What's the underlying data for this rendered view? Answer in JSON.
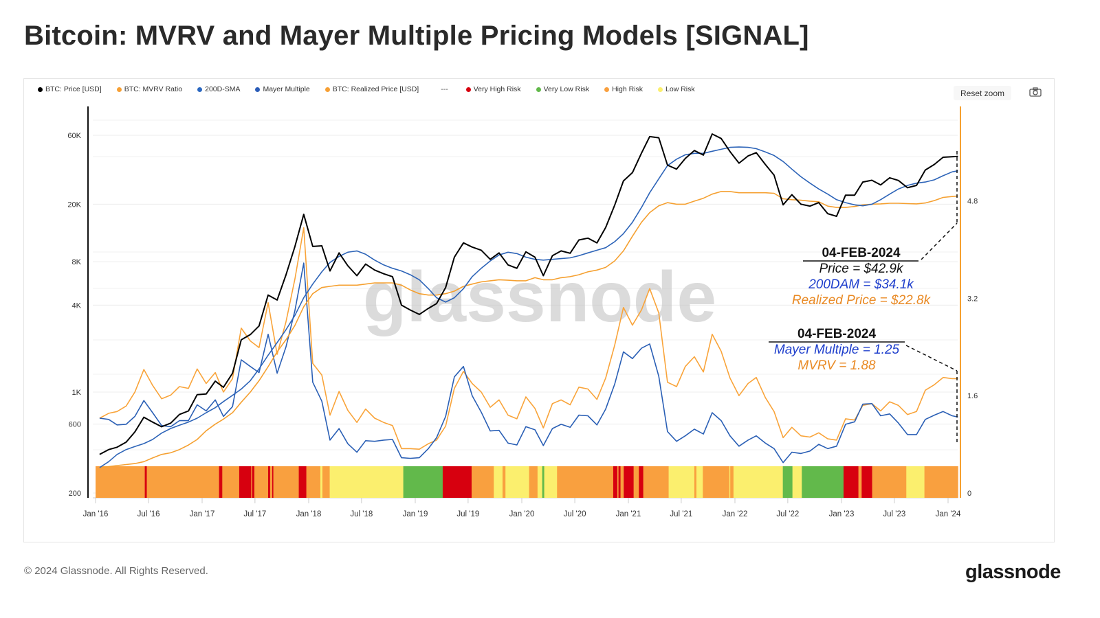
{
  "title": "Bitcoin: MVRV and Mayer Multiple Pricing Models [SIGNAL]",
  "toolbar": {
    "reset_zoom": "Reset zoom",
    "camera_icon": "camera-icon"
  },
  "legend": [
    {
      "label": "BTC: Price [USD]",
      "color": "#000000"
    },
    {
      "label": "BTC: MVRV Ratio",
      "color": "#f7a035"
    },
    {
      "label": "200D-SMA",
      "color": "#2b68c1"
    },
    {
      "label": "Mayer Multiple",
      "color": "#2b5db8"
    },
    {
      "label": "BTC: Realized Price [USD]",
      "color": "#f7a035"
    },
    {
      "label": "---",
      "color": ""
    },
    {
      "label": "Very High Risk",
      "color": "#d7000f"
    },
    {
      "label": "Very Low Risk",
      "color": "#62b94b"
    },
    {
      "label": "High Risk",
      "color": "#f9a03f"
    },
    {
      "label": "Low Risk",
      "color": "#fbef6e"
    }
  ],
  "watermark": "glassnode",
  "annotations": {
    "top": {
      "date": "04-FEB-2024",
      "price": "Price = $42.9k",
      "sma": "200DAM = $34.1k",
      "realized": "Realized Price = $22.8k"
    },
    "bottom": {
      "date": "04-FEB-2024",
      "mayer": "Mayer Multiple = 1.25",
      "mvrv": "MVRV = 1.88"
    }
  },
  "footer": {
    "copyright": "© 2024 Glassnode. All Rights Reserved.",
    "logo": "glassnode"
  },
  "chart_data": {
    "type": "line",
    "title": "Bitcoin: MVRV and Mayer Multiple Pricing Models [SIGNAL]",
    "grid": true,
    "legend_position": "top",
    "left_axis": {
      "scale": "log",
      "range": [
        200,
        80000
      ],
      "ticks": [
        200,
        600,
        1000,
        4000,
        8000,
        20000,
        60000
      ],
      "tick_labels": [
        "200",
        "600",
        "1K",
        "4K",
        "8K",
        "20K",
        "60K"
      ]
    },
    "right_axis": {
      "scale": "linear",
      "range": [
        0,
        6.5
      ],
      "ticks": [
        0,
        1.6,
        3.2,
        4.8
      ],
      "tick_labels": [
        "0",
        "1.6",
        "3.2",
        "4.8"
      ]
    },
    "x_axis": {
      "range": [
        "2016-01-01",
        "2024-02-04"
      ],
      "ticks": [
        "2016-01-01",
        "2016-07-01",
        "2017-01-01",
        "2017-07-01",
        "2018-01-01",
        "2018-07-01",
        "2019-01-01",
        "2019-07-01",
        "2020-01-01",
        "2020-07-01",
        "2021-01-01",
        "2021-07-01",
        "2022-01-01",
        "2022-07-01",
        "2023-01-01",
        "2023-07-01",
        "2024-01-01"
      ],
      "tick_labels": [
        "Jan '16",
        "Jul '16",
        "Jan '17",
        "Jul '17",
        "Jan '18",
        "Jul '18",
        "Jan '19",
        "Jul '19",
        "Jan '20",
        "Jul '20",
        "Jan '21",
        "Jul '21",
        "Jan '22",
        "Jul '22",
        "Jan '23",
        "Jul '23",
        "Jan '24"
      ]
    },
    "x": [
      "2016-01",
      "2016-02",
      "2016-03",
      "2016-04",
      "2016-05",
      "2016-06",
      "2016-07",
      "2016-08",
      "2016-09",
      "2016-10",
      "2016-11",
      "2016-12",
      "2017-01",
      "2017-02",
      "2017-03",
      "2017-04",
      "2017-05",
      "2017-06",
      "2017-07",
      "2017-08",
      "2017-09",
      "2017-10",
      "2017-11",
      "2017-12",
      "2018-01",
      "2018-02",
      "2018-03",
      "2018-04",
      "2018-05",
      "2018-06",
      "2018-07",
      "2018-08",
      "2018-09",
      "2018-10",
      "2018-11",
      "2018-12",
      "2019-01",
      "2019-02",
      "2019-03",
      "2019-04",
      "2019-05",
      "2019-06",
      "2019-07",
      "2019-08",
      "2019-09",
      "2019-10",
      "2019-11",
      "2019-12",
      "2020-01",
      "2020-02",
      "2020-03",
      "2020-04",
      "2020-05",
      "2020-06",
      "2020-07",
      "2020-08",
      "2020-09",
      "2020-10",
      "2020-11",
      "2020-12",
      "2021-01",
      "2021-02",
      "2021-03",
      "2021-04",
      "2021-05",
      "2021-06",
      "2021-07",
      "2021-08",
      "2021-09",
      "2021-10",
      "2021-11",
      "2021-12",
      "2022-01",
      "2022-02",
      "2022-03",
      "2022-04",
      "2022-05",
      "2022-06",
      "2022-07",
      "2022-08",
      "2022-09",
      "2022-10",
      "2022-11",
      "2022-12",
      "2023-01",
      "2023-02",
      "2023-03",
      "2023-04",
      "2023-05",
      "2023-06",
      "2023-07",
      "2023-08",
      "2023-09",
      "2023-10",
      "2023-11",
      "2023-12",
      "2024-01",
      "2024-02-04"
    ],
    "series": [
      {
        "name": "BTC: Price [USD]",
        "axis": "left",
        "color": "#000000",
        "values": [
          370,
          400,
          415,
          450,
          530,
          670,
          620,
          575,
          610,
          700,
          740,
          960,
          970,
          1190,
          1080,
          1350,
          2300,
          2500,
          2870,
          4700,
          4340,
          6470,
          10200,
          17000,
          10200,
          10300,
          6900,
          9200,
          7500,
          6400,
          7700,
          7000,
          6600,
          6300,
          4000,
          3700,
          3450,
          3800,
          4100,
          5300,
          8600,
          10800,
          10100,
          9600,
          8300,
          9200,
          7600,
          7200,
          9350,
          8600,
          6400,
          8800,
          9500,
          9150,
          11300,
          11650,
          10780,
          13800,
          19700,
          29000,
          33100,
          45200,
          58800,
          57700,
          37300,
          35000,
          41500,
          47100,
          43800,
          61300,
          57000,
          46300,
          38500,
          43200,
          45500,
          37700,
          31800,
          19800,
          23300,
          20000,
          19400,
          20500,
          17200,
          16500,
          23100,
          23100,
          28500,
          29300,
          27200,
          30500,
          29200,
          26000,
          27000,
          34500,
          37700,
          42300,
          42600,
          42900
        ]
      },
      {
        "name": "200D-SMA",
        "axis": "left",
        "color": "#2d64b8",
        "values": [
          300,
          330,
          370,
          400,
          420,
          440,
          470,
          520,
          560,
          590,
          620,
          660,
          720,
          780,
          860,
          950,
          1050,
          1200,
          1450,
          1800,
          2200,
          2700,
          3400,
          4500,
          5600,
          6800,
          7900,
          8700,
          9300,
          9500,
          9000,
          8200,
          7600,
          7200,
          6900,
          6500,
          6000,
          5200,
          4500,
          4200,
          4500,
          5200,
          6300,
          7200,
          8100,
          8900,
          9300,
          9100,
          8600,
          8300,
          8200,
          8300,
          8400,
          8500,
          8800,
          9200,
          9600,
          10000,
          11000,
          12500,
          15000,
          19000,
          24000,
          30000,
          37000,
          41000,
          44000,
          45000,
          45000,
          46500,
          48000,
          49500,
          49800,
          49500,
          48500,
          46000,
          43500,
          39500,
          35000,
          31000,
          28000,
          25500,
          23500,
          21500,
          20500,
          19800,
          19500,
          20000,
          21500,
          23500,
          25500,
          27000,
          28000,
          28500,
          29500,
          31500,
          33500,
          34100
        ]
      },
      {
        "name": "BTC: Realized Price [USD]",
        "axis": "left",
        "color": "#f5a030",
        "values": [
          300,
          305,
          310,
          315,
          320,
          330,
          350,
          370,
          380,
          400,
          430,
          470,
          540,
          600,
          650,
          720,
          850,
          1000,
          1200,
          1500,
          1900,
          2300,
          2900,
          3900,
          4800,
          5300,
          5400,
          5500,
          5500,
          5500,
          5600,
          5700,
          5700,
          5700,
          5500,
          5100,
          4800,
          4700,
          4700,
          4800,
          5000,
          5400,
          5600,
          5800,
          5900,
          6000,
          5950,
          5900,
          5900,
          6200,
          6000,
          6000,
          6200,
          6300,
          6500,
          6800,
          7000,
          7300,
          8100,
          9500,
          12000,
          15000,
          17500,
          19500,
          20500,
          20000,
          20000,
          21000,
          22000,
          23500,
          24500,
          24500,
          24000,
          24000,
          24000,
          24000,
          23800,
          21800,
          21500,
          21300,
          21000,
          20800,
          19400,
          19000,
          19000,
          19300,
          19800,
          20000,
          20100,
          20300,
          20300,
          20200,
          20100,
          20400,
          21200,
          22300,
          22600,
          22800
        ]
      },
      {
        "name": "Mayer Multiple",
        "axis": "right",
        "color": "#2a5fb5",
        "values": [
          1.23,
          1.21,
          1.12,
          1.13,
          1.26,
          1.52,
          1.32,
          1.11,
          1.09,
          1.19,
          1.19,
          1.45,
          1.35,
          1.53,
          1.26,
          1.42,
          2.19,
          2.08,
          1.98,
          2.61,
          1.97,
          2.4,
          3.0,
          3.78,
          1.82,
          1.51,
          0.87,
          1.06,
          0.81,
          0.67,
          0.86,
          0.85,
          0.87,
          0.88,
          0.58,
          0.57,
          0.58,
          0.73,
          0.91,
          1.26,
          1.91,
          2.08,
          1.6,
          1.33,
          1.02,
          1.03,
          0.82,
          0.79,
          1.09,
          1.04,
          0.78,
          1.06,
          1.13,
          1.08,
          1.28,
          1.27,
          1.12,
          1.38,
          1.79,
          2.32,
          2.21,
          2.38,
          2.45,
          1.92,
          1.01,
          0.85,
          0.94,
          1.05,
          0.97,
          1.32,
          1.19,
          0.94,
          0.77,
          0.87,
          0.94,
          0.82,
          0.73,
          0.5,
          0.67,
          0.65,
          0.69,
          0.8,
          0.73,
          0.77,
          1.13,
          1.17,
          1.46,
          1.47,
          1.27,
          1.3,
          1.15,
          0.96,
          0.96,
          1.21,
          1.28,
          1.34,
          1.27,
          1.25
        ]
      },
      {
        "name": "BTC: MVRV Ratio",
        "axis": "right",
        "color": "#f9a43a",
        "values": [
          1.23,
          1.31,
          1.34,
          1.43,
          1.66,
          2.03,
          1.77,
          1.55,
          1.61,
          1.75,
          1.72,
          2.04,
          1.8,
          1.98,
          1.66,
          1.88,
          2.71,
          2.5,
          2.39,
          3.13,
          2.28,
          2.81,
          3.52,
          4.36,
          2.13,
          1.94,
          1.28,
          1.67,
          1.36,
          1.16,
          1.38,
          1.23,
          1.16,
          1.11,
          0.73,
          0.73,
          0.72,
          0.81,
          0.87,
          1.1,
          1.72,
          2.0,
          1.8,
          1.66,
          1.41,
          1.53,
          1.28,
          1.22,
          1.58,
          1.39,
          1.07,
          1.47,
          1.53,
          1.45,
          1.74,
          1.71,
          1.54,
          1.89,
          2.43,
          3.05,
          2.76,
          3.01,
          3.36,
          2.96,
          1.82,
          1.75,
          2.08,
          2.24,
          1.99,
          2.61,
          2.33,
          1.89,
          1.6,
          1.8,
          1.9,
          1.57,
          1.34,
          0.91,
          1.08,
          0.94,
          0.92,
          0.99,
          0.89,
          0.87,
          1.22,
          1.2,
          1.44,
          1.47,
          1.35,
          1.5,
          1.44,
          1.29,
          1.34,
          1.69,
          1.78,
          1.9,
          1.88,
          1.88
        ]
      }
    ],
    "risk_band": {
      "colors": {
        "Very High Risk": "#d7000f",
        "High Risk": "#f9a03f",
        "Low Risk": "#fbef6e",
        "Very Low Risk": "#62b94b"
      },
      "end": "2024-02-04",
      "segments": [
        [
          "2016-01-01",
          "High Risk"
        ],
        [
          "2016-06-18",
          "Very High Risk"
        ],
        [
          "2016-06-25",
          "High Risk"
        ],
        [
          "2017-02-28",
          "Very High Risk"
        ],
        [
          "2017-03-11",
          "High Risk"
        ],
        [
          "2017-05-08",
          "Very High Risk"
        ],
        [
          "2017-06-18",
          "High Risk"
        ],
        [
          "2017-06-21",
          "Very High Risk"
        ],
        [
          "2017-06-29",
          "High Risk"
        ],
        [
          "2017-08-15",
          "Very High Risk"
        ],
        [
          "2017-08-22",
          "High Risk"
        ],
        [
          "2017-08-29",
          "Very High Risk"
        ],
        [
          "2017-09-02",
          "High Risk"
        ],
        [
          "2017-11-28",
          "Very High Risk"
        ],
        [
          "2017-12-24",
          "High Risk"
        ],
        [
          "2018-02-10",
          "Low Risk"
        ],
        [
          "2018-02-17",
          "High Risk"
        ],
        [
          "2018-03-14",
          "Low Risk"
        ],
        [
          "2018-11-21",
          "Very Low Risk"
        ],
        [
          "2019-04-05",
          "Very High Risk"
        ],
        [
          "2019-07-13",
          "High Risk"
        ],
        [
          "2019-09-27",
          "Low Risk"
        ],
        [
          "2019-10-27",
          "High Risk"
        ],
        [
          "2019-11-06",
          "Low Risk"
        ],
        [
          "2020-01-26",
          "High Risk"
        ],
        [
          "2020-02-24",
          "Low Risk"
        ],
        [
          "2020-03-11",
          "Very Low Risk"
        ],
        [
          "2020-03-18",
          "Low Risk"
        ],
        [
          "2020-05-01",
          "High Risk"
        ],
        [
          "2020-11-10",
          "Very High Risk"
        ],
        [
          "2020-11-24",
          "High Risk"
        ],
        [
          "2020-11-28",
          "Very High Risk"
        ],
        [
          "2020-12-05",
          "High Risk"
        ],
        [
          "2020-12-16",
          "Very High Risk"
        ],
        [
          "2021-01-19",
          "High Risk"
        ],
        [
          "2021-02-06",
          "Very High Risk"
        ],
        [
          "2021-02-21",
          "High Risk"
        ],
        [
          "2021-05-19",
          "Low Risk"
        ],
        [
          "2021-08-15",
          "High Risk"
        ],
        [
          "2021-08-22",
          "Low Risk"
        ],
        [
          "2021-09-13",
          "High Risk"
        ],
        [
          "2021-12-13",
          "Low Risk"
        ],
        [
          "2021-12-16",
          "High Risk"
        ],
        [
          "2021-12-27",
          "Low Risk"
        ],
        [
          "2022-06-14",
          "Very Low Risk"
        ],
        [
          "2022-07-17",
          "Low Risk"
        ],
        [
          "2022-08-18",
          "Very Low Risk"
        ],
        [
          "2023-01-08",
          "Very High Risk"
        ],
        [
          "2023-02-28",
          "High Risk"
        ],
        [
          "2023-03-11",
          "Very High Risk"
        ],
        [
          "2023-04-16",
          "High Risk"
        ],
        [
          "2023-08-11",
          "Low Risk"
        ],
        [
          "2023-10-12",
          "High Risk"
        ]
      ]
    }
  }
}
